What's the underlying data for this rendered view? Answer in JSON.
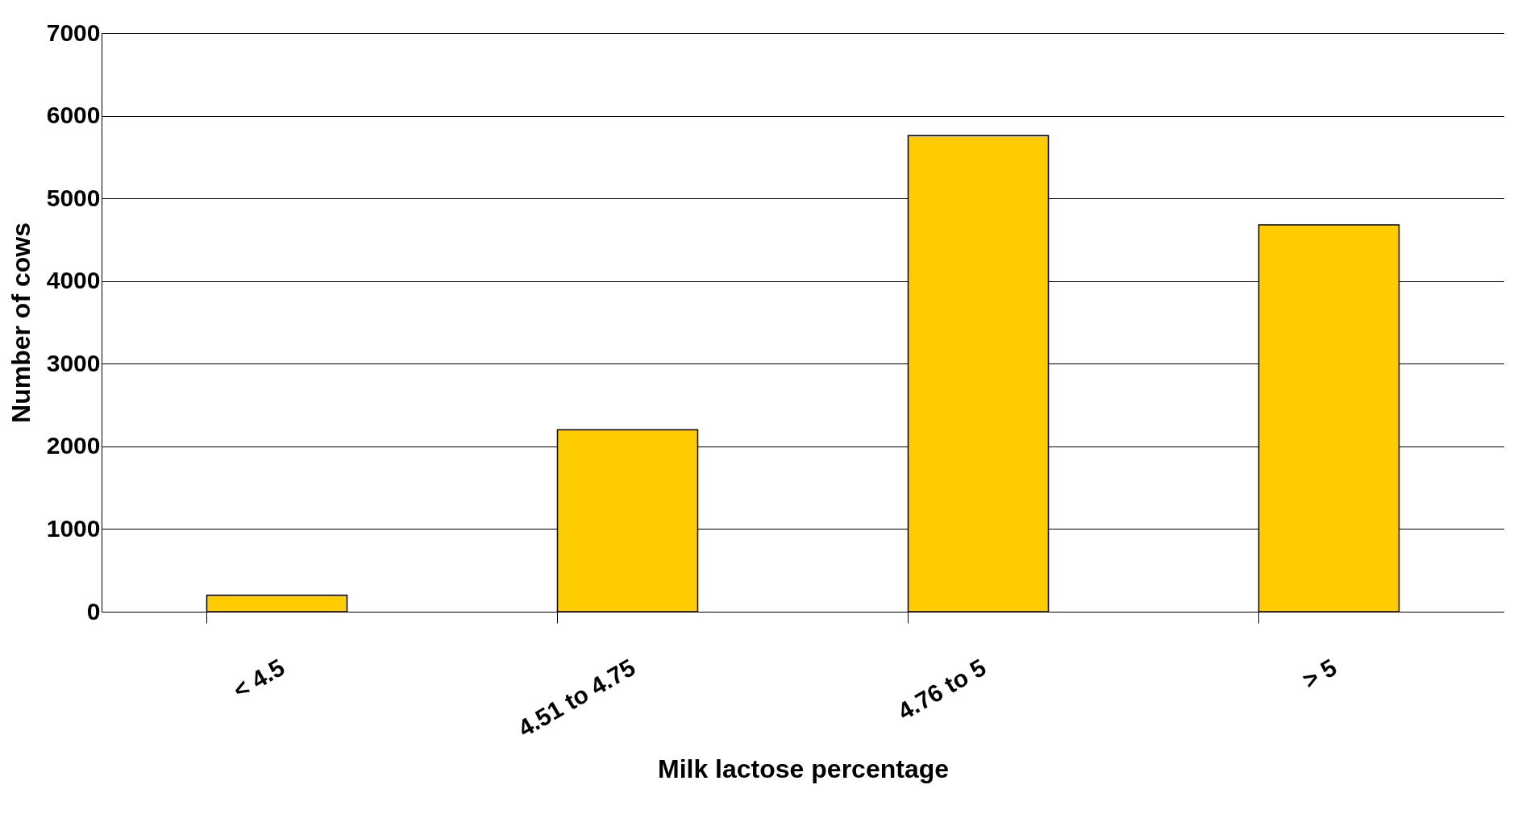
{
  "chart_data": {
    "type": "bar",
    "xlabel": "Milk lactose percentage",
    "ylabel": "Number of cows",
    "categories": [
      "< 4.5",
      "4.51 to 4.75",
      "4.76 to 5",
      "> 5"
    ],
    "values": [
      200,
      2200,
      5760,
      4680
    ],
    "color": "#ffcc00",
    "ylim": [
      0,
      7000
    ],
    "yticks": [
      0,
      1000,
      2000,
      3000,
      4000,
      5000,
      6000,
      7000
    ],
    "grid": "y"
  }
}
